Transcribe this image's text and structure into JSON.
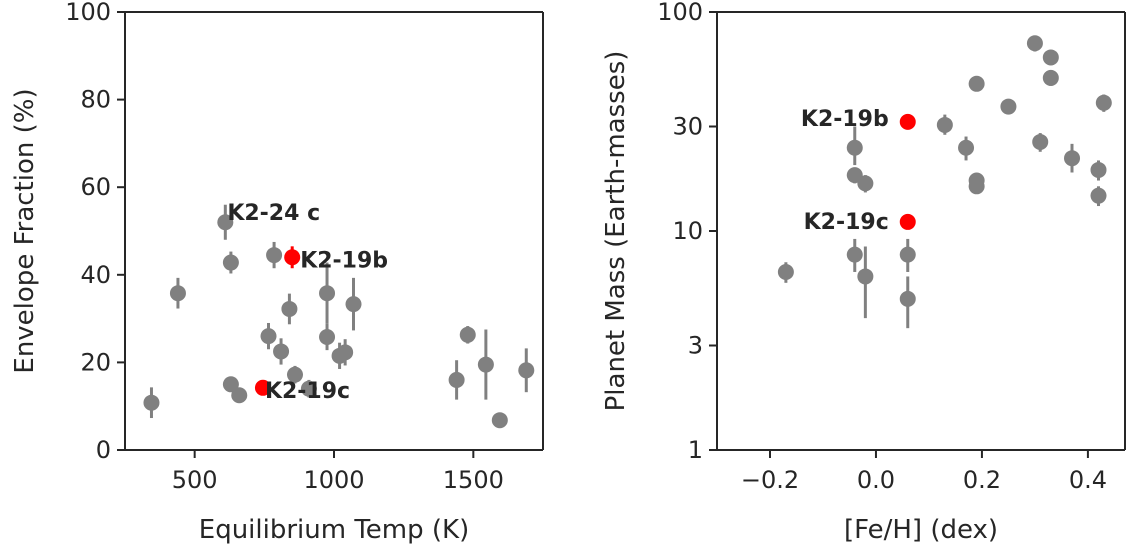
{
  "chart_data": [
    {
      "type": "scatter",
      "xlabel": "Equilibrium Temp (K)",
      "ylabel": "Envelope Fraction (%)",
      "xlim": [
        250,
        1750
      ],
      "ylim": [
        0,
        100
      ],
      "xticks": [
        500,
        1000,
        1500
      ],
      "yticks": [
        0,
        20,
        40,
        60,
        80,
        100
      ],
      "x_tick_labels": [
        "500",
        "1000",
        "1500"
      ],
      "y_tick_labels": [
        "0",
        "20",
        "40",
        "60",
        "80",
        "100"
      ],
      "grid": false,
      "marker_color": "#808080",
      "highlight_color": "#ff0000",
      "points": [
        {
          "x": 345,
          "y": 10.8,
          "err": 3.5
        },
        {
          "x": 440,
          "y": 35.8,
          "err": 3.5
        },
        {
          "x": 610,
          "y": 52,
          "err": 4
        },
        {
          "x": 630,
          "y": 42.8,
          "err": 2.5
        },
        {
          "x": 630,
          "y": 15,
          "err": 1.5
        },
        {
          "x": 660,
          "y": 12.5,
          "err": 1.5
        },
        {
          "x": 765,
          "y": 26,
          "err": 3
        },
        {
          "x": 785,
          "y": 44.5,
          "err": 3
        },
        {
          "x": 810,
          "y": 22.5,
          "err": 3
        },
        {
          "x": 840,
          "y": 32.2,
          "err": 3.5
        },
        {
          "x": 860,
          "y": 17.2,
          "err": 2
        },
        {
          "x": 910,
          "y": 14,
          "err": 2
        },
        {
          "x": 975,
          "y": 35.8,
          "err": 7
        },
        {
          "x": 975,
          "y": 25.8,
          "err": 3
        },
        {
          "x": 1020,
          "y": 21.5,
          "err": 3
        },
        {
          "x": 1040,
          "y": 22.3,
          "err": 3
        },
        {
          "x": 1070,
          "y": 33.3,
          "err": 6
        },
        {
          "x": 1440,
          "y": 16,
          "err": 4.5
        },
        {
          "x": 1480,
          "y": 26.3,
          "err": 2
        },
        {
          "x": 1545,
          "y": 19.5,
          "err": 8
        },
        {
          "x": 1595,
          "y": 6.8,
          "err": 1
        },
        {
          "x": 1690,
          "y": 18.2,
          "err": 5
        }
      ],
      "highlighted": [
        {
          "x": 850,
          "y": 44,
          "err": 2.5
        },
        {
          "x": 745,
          "y": 14.2,
          "err": 1
        }
      ],
      "annotations": [
        {
          "text": "K2-24 c",
          "x": 610,
          "y": 52
        },
        {
          "text": "K2-19b",
          "x": 850,
          "y": 44
        },
        {
          "text": "K2-19c",
          "x": 745,
          "y": 14.2
        }
      ]
    },
    {
      "type": "scatter",
      "xlabel": "[Fe/H] (dex)",
      "ylabel": "Planet Mass (Earth-masses)",
      "xlim": [
        -0.3,
        0.47
      ],
      "ylim": [
        1,
        100
      ],
      "yscale": "log",
      "xticks": [
        -0.2,
        0.0,
        0.2,
        0.4
      ],
      "yticks": [
        1,
        3,
        10,
        30,
        100
      ],
      "x_tick_labels": [
        "−0.2",
        "0.0",
        "0.2",
        "0.4"
      ],
      "y_tick_labels": [
        "1",
        "3",
        "10",
        "30",
        "100"
      ],
      "grid": false,
      "marker_color": "#808080",
      "highlight_color": "#ff0000",
      "points": [
        {
          "x": -0.17,
          "y": 6.5,
          "lo": 5.8,
          "hi": 7.2
        },
        {
          "x": -0.04,
          "y": 24,
          "lo": 20,
          "hi": 30
        },
        {
          "x": -0.04,
          "y": 18,
          "lo": 16.5,
          "hi": 19.5
        },
        {
          "x": -0.04,
          "y": 7.8,
          "lo": 6.5,
          "hi": 9.2
        },
        {
          "x": -0.02,
          "y": 16.5,
          "lo": 15,
          "hi": 18
        },
        {
          "x": -0.02,
          "y": 6.2,
          "lo": 4,
          "hi": 8.5
        },
        {
          "x": 0.06,
          "y": 7.8,
          "lo": 6.5,
          "hi": 9.2
        },
        {
          "x": 0.06,
          "y": 4.9,
          "lo": 3.6,
          "hi": 6.2
        },
        {
          "x": 0.13,
          "y": 30.5,
          "lo": 27.5,
          "hi": 34
        },
        {
          "x": 0.17,
          "y": 24,
          "lo": 21,
          "hi": 27
        },
        {
          "x": 0.19,
          "y": 17,
          "lo": 16,
          "hi": 18
        },
        {
          "x": 0.19,
          "y": 16,
          "lo": 15,
          "hi": 17
        },
        {
          "x": 0.19,
          "y": 47,
          "lo": 45,
          "hi": 49
        },
        {
          "x": 0.25,
          "y": 37,
          "lo": 34.5,
          "hi": 39.5
        },
        {
          "x": 0.3,
          "y": 72,
          "lo": 66,
          "hi": 78
        },
        {
          "x": 0.31,
          "y": 25.5,
          "lo": 23,
          "hi": 28
        },
        {
          "x": 0.33,
          "y": 62,
          "lo": 58,
          "hi": 66
        },
        {
          "x": 0.33,
          "y": 50,
          "lo": 46,
          "hi": 54
        },
        {
          "x": 0.37,
          "y": 21.5,
          "lo": 18.5,
          "hi": 25
        },
        {
          "x": 0.42,
          "y": 19,
          "lo": 17,
          "hi": 21
        },
        {
          "x": 0.42,
          "y": 14.5,
          "lo": 13,
          "hi": 16
        },
        {
          "x": 0.43,
          "y": 38.5,
          "lo": 35,
          "hi": 42
        }
      ],
      "highlighted": [
        {
          "x": 0.06,
          "y": 31.5
        },
        {
          "x": 0.06,
          "y": 11
        }
      ],
      "annotations": [
        {
          "text": "K2-19b",
          "x": 0.06,
          "y": 31.5
        },
        {
          "text": "K2-19c",
          "x": 0.06,
          "y": 11
        }
      ]
    }
  ]
}
